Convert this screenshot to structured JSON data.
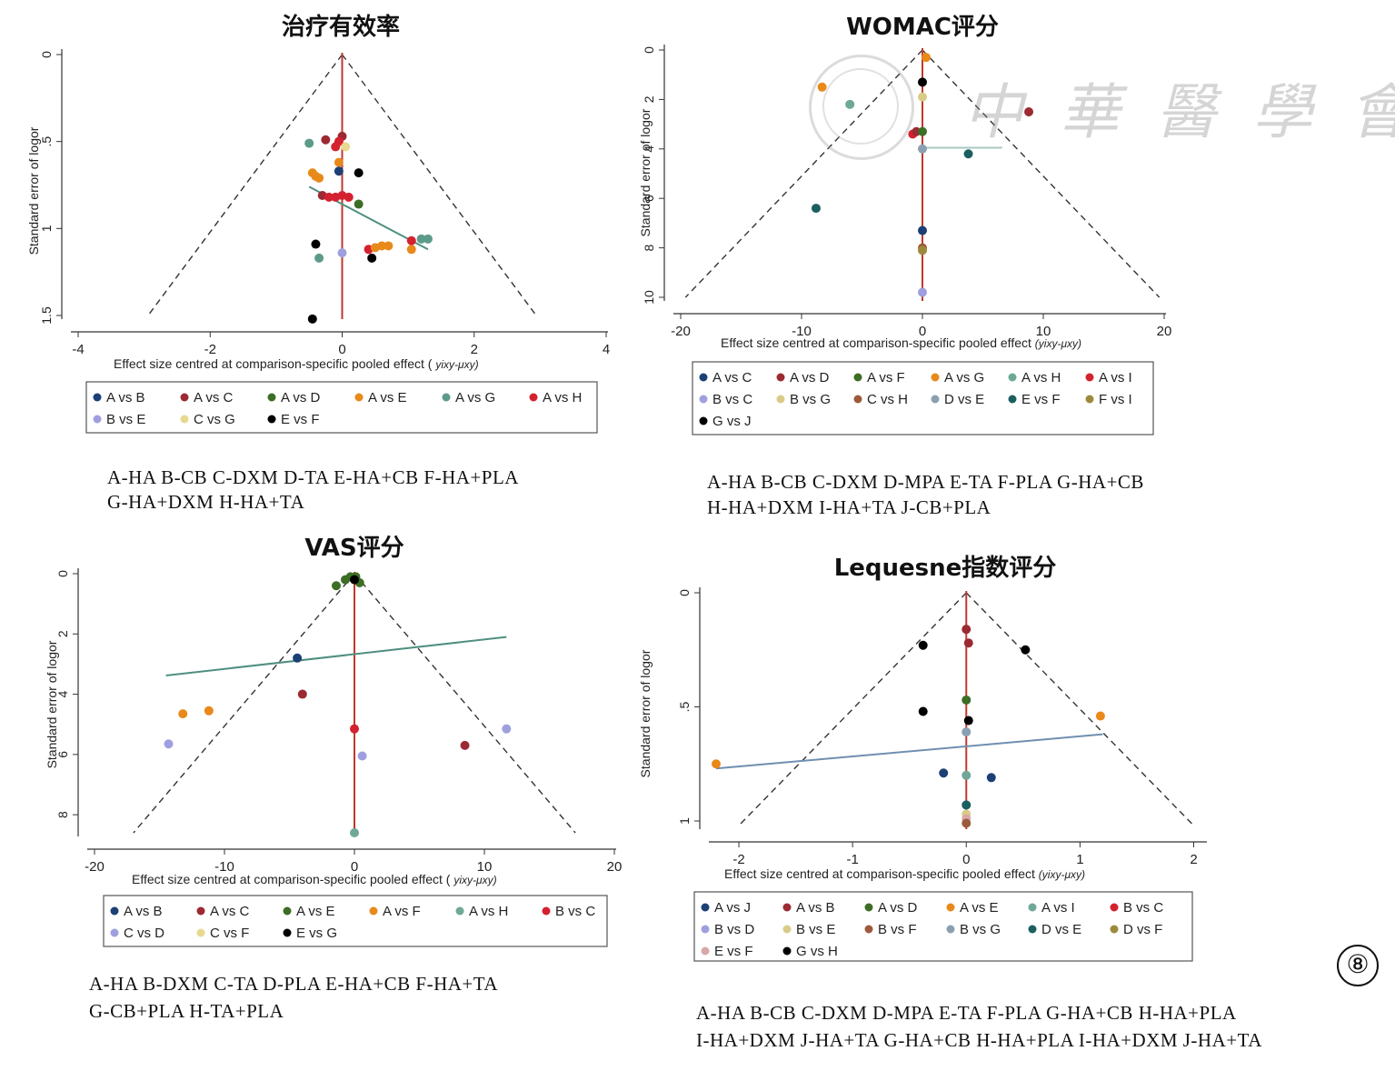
{
  "figure_label": "⑧",
  "watermark": "中華醫學會",
  "chart_data": [
    {
      "type": "scatter",
      "title": "治疗有效率",
      "xlabel": "Effect size centred at comparison-specific pooled effect (",
      "xlabel_sym": "yixy-μxy)",
      "ylabel": "Standard error of logor",
      "xlim": [
        -4,
        4
      ],
      "ylim": [
        0,
        1.5
      ],
      "xticks": [
        "-4",
        "-2",
        "0",
        "2",
        "4"
      ],
      "xtick_vals": [
        -4,
        -2,
        0,
        2,
        4
      ],
      "yticks": [
        "0",
        ".5",
        "1",
        "1.5"
      ],
      "ytick_vals": [
        0,
        0.5,
        1,
        1.5
      ],
      "funnel_base_y": 1.5,
      "funnel_half_width": 2.94,
      "fit_line": {
        "x": [
          -0.5,
          1.3
        ],
        "y": [
          0.76,
          1.12
        ]
      },
      "fit_color": "#4f8f80",
      "legend": [
        {
          "label": "A vs B",
          "color": "#1c3f75"
        },
        {
          "label": "A vs C",
          "color": "#9c2a32"
        },
        {
          "label": "A vs D",
          "color": "#3c6e25"
        },
        {
          "label": "A vs E",
          "color": "#e8891a"
        },
        {
          "label": "A vs G",
          "color": "#5c9a8a"
        },
        {
          "label": "A vs H",
          "color": "#d4212f"
        },
        {
          "label": "B vs E",
          "color": "#9f9fe0"
        },
        {
          "label": "C vs G",
          "color": "#e8d890"
        },
        {
          "label": "E vs F",
          "color": "#000000"
        }
      ],
      "legend_cols": 6,
      "points": [
        {
          "x": 0,
          "y": 0.47,
          "s": "A vs C"
        },
        {
          "x": -0.25,
          "y": 0.49,
          "s": "A vs C"
        },
        {
          "x": -0.5,
          "y": 0.51,
          "s": "A vs G"
        },
        {
          "x": -0.05,
          "y": 0.5,
          "s": "A vs H"
        },
        {
          "x": -0.1,
          "y": 0.53,
          "s": "A vs H"
        },
        {
          "x": 0.05,
          "y": 0.53,
          "s": "C vs G"
        },
        {
          "x": -0.05,
          "y": 0.62,
          "s": "A vs E"
        },
        {
          "x": -0.05,
          "y": 0.67,
          "s": "A vs B"
        },
        {
          "x": 0.25,
          "y": 0.68,
          "s": "E vs F"
        },
        {
          "x": -0.45,
          "y": 0.68,
          "s": "A vs E"
        },
        {
          "x": -0.4,
          "y": 0.7,
          "s": "A vs E"
        },
        {
          "x": -0.35,
          "y": 0.71,
          "s": "A vs E"
        },
        {
          "x": -0.3,
          "y": 0.81,
          "s": "A vs C"
        },
        {
          "x": -0.2,
          "y": 0.82,
          "s": "A vs H"
        },
        {
          "x": -0.1,
          "y": 0.82,
          "s": "A vs H"
        },
        {
          "x": 0,
          "y": 0.81,
          "s": "A vs H"
        },
        {
          "x": 0.1,
          "y": 0.82,
          "s": "A vs H"
        },
        {
          "x": 0.25,
          "y": 0.86,
          "s": "A vs D"
        },
        {
          "x": -0.4,
          "y": 1.09,
          "s": "E vs F"
        },
        {
          "x": 0,
          "y": 1.14,
          "s": "B vs E"
        },
        {
          "x": -0.35,
          "y": 1.17,
          "s": "A vs G"
        },
        {
          "x": 0.45,
          "y": 1.17,
          "s": "E vs F"
        },
        {
          "x": 0.4,
          "y": 1.12,
          "s": "A vs H"
        },
        {
          "x": 0.5,
          "y": 1.11,
          "s": "A vs E"
        },
        {
          "x": 0.6,
          "y": 1.1,
          "s": "A vs E"
        },
        {
          "x": 0.7,
          "y": 1.1,
          "s": "A vs E"
        },
        {
          "x": 1.05,
          "y": 1.07,
          "s": "A vs H"
        },
        {
          "x": 1.05,
          "y": 1.12,
          "s": "A vs E"
        },
        {
          "x": 1.2,
          "y": 1.06,
          "s": "A vs G"
        },
        {
          "x": 1.3,
          "y": 1.06,
          "s": "A vs G"
        },
        {
          "x": -0.45,
          "y": 1.52,
          "s": "E vs F"
        }
      ]
    },
    {
      "type": "scatter",
      "title": "WOMAC评分",
      "xlabel": "Effect size centred at comparison-specific pooled effect",
      "xlabel_sym": "(yixy-μxy)",
      "ylabel": "Standard error of logor",
      "xlim": [
        -20,
        20
      ],
      "ylim": [
        0,
        10
      ],
      "xticks": [
        "-20",
        "-10",
        "0",
        "10",
        "20"
      ],
      "xtick_vals": [
        -20,
        -10,
        0,
        10,
        20
      ],
      "yticks": [
        "0",
        "2",
        "4",
        "6",
        "8",
        "10"
      ],
      "ytick_vals": [
        0,
        2,
        4,
        6,
        8,
        10
      ],
      "funnel_base_y": 10,
      "funnel_half_width": 19.6,
      "fit_line": {
        "x": [
          -0.2,
          6.6
        ],
        "y": [
          3.95,
          3.95
        ]
      },
      "fit_color": "#a8c8c0",
      "legend": [
        {
          "label": "A vs C",
          "color": "#1c3f75"
        },
        {
          "label": "A vs D",
          "color": "#9c2a32"
        },
        {
          "label": "A vs F",
          "color": "#3c6e25"
        },
        {
          "label": "A vs G",
          "color": "#e8891a"
        },
        {
          "label": "A vs H",
          "color": "#6fa898"
        },
        {
          "label": "A vs I",
          "color": "#d4212f"
        },
        {
          "label": "B vs C",
          "color": "#9f9fe0"
        },
        {
          "label": "B vs G",
          "color": "#d8cc88"
        },
        {
          "label": "C vs H",
          "color": "#9c5a3c"
        },
        {
          "label": "D vs E",
          "color": "#8aa0b0"
        },
        {
          "label": "E vs F",
          "color": "#1c5f60"
        },
        {
          "label": "F vs I",
          "color": "#9c8a3c"
        },
        {
          "label": "G vs J",
          "color": "#000000"
        }
      ],
      "legend_cols": 6,
      "points": [
        {
          "x": 0.3,
          "y": 0.3,
          "s": "A vs G"
        },
        {
          "x": 0,
          "y": 1.3,
          "s": "G vs J"
        },
        {
          "x": -8.3,
          "y": 1.5,
          "s": "A vs G"
        },
        {
          "x": 0,
          "y": 1.9,
          "s": "B vs G"
        },
        {
          "x": -6,
          "y": 2.2,
          "s": "A vs H"
        },
        {
          "x": 8.8,
          "y": 2.5,
          "s": "A vs D"
        },
        {
          "x": -0.8,
          "y": 3.4,
          "s": "A vs I"
        },
        {
          "x": -0.5,
          "y": 3.3,
          "s": "A vs D"
        },
        {
          "x": 0,
          "y": 3.3,
          "s": "A vs F"
        },
        {
          "x": 0,
          "y": 4.0,
          "s": "D vs E"
        },
        {
          "x": 3.8,
          "y": 4.2,
          "s": "E vs F"
        },
        {
          "x": -8.8,
          "y": 6.4,
          "s": "E vs F"
        },
        {
          "x": 0,
          "y": 7.3,
          "s": "A vs C"
        },
        {
          "x": 0,
          "y": 8.0,
          "s": "C vs H"
        },
        {
          "x": 0,
          "y": 8.1,
          "s": "F vs I"
        },
        {
          "x": 0,
          "y": 9.8,
          "s": "B vs C"
        }
      ]
    },
    {
      "type": "scatter",
      "title": "VAS评分",
      "xlabel": "Effect size centred at comparison-specific pooled effect (",
      "xlabel_sym": "yixy-μxy)",
      "ylabel": "Standard error of logor",
      "xlim": [
        -20,
        20
      ],
      "ylim": [
        0,
        8.6
      ],
      "xticks": [
        "-20",
        "-10",
        "0",
        "10",
        "20"
      ],
      "xtick_vals": [
        -20,
        -10,
        0,
        10,
        20
      ],
      "yticks": [
        "0",
        "2",
        "4",
        "6",
        "8"
      ],
      "ytick_vals": [
        0,
        2,
        4,
        6,
        8
      ],
      "funnel_base_y": 8.6,
      "funnel_half_width": 17.0,
      "fit_line": {
        "x": [
          -14.5,
          11.7
        ],
        "y": [
          3.38,
          2.1
        ]
      },
      "fit_color": "#4f8f80",
      "legend": [
        {
          "label": "A vs B",
          "color": "#1c3f75"
        },
        {
          "label": "A vs C",
          "color": "#9c2a32"
        },
        {
          "label": "A vs E",
          "color": "#3c6e25"
        },
        {
          "label": "A vs F",
          "color": "#e8891a"
        },
        {
          "label": "A vs H",
          "color": "#6fa898"
        },
        {
          "label": "B vs C",
          "color": "#d4212f"
        },
        {
          "label": "C vs D",
          "color": "#9f9fe0"
        },
        {
          "label": "C vs F",
          "color": "#e8d890"
        },
        {
          "label": "E vs G",
          "color": "#000000"
        }
      ],
      "legend_cols": 6,
      "points": [
        {
          "x": -1.4,
          "y": 0.4,
          "s": "A vs E"
        },
        {
          "x": -0.7,
          "y": 0.2,
          "s": "A vs E"
        },
        {
          "x": -0.3,
          "y": 0.1,
          "s": "A vs E"
        },
        {
          "x": 0.1,
          "y": 0.1,
          "s": "A vs E"
        },
        {
          "x": 0.4,
          "y": 0.3,
          "s": "A vs E"
        },
        {
          "x": 0,
          "y": 0.2,
          "s": "E vs G"
        },
        {
          "x": -4.4,
          "y": 2.8,
          "s": "A vs B"
        },
        {
          "x": -4.0,
          "y": 4.0,
          "s": "A vs C"
        },
        {
          "x": -11.2,
          "y": 4.55,
          "s": "A vs F"
        },
        {
          "x": -13.2,
          "y": 4.65,
          "s": "A vs F"
        },
        {
          "x": 0,
          "y": 5.15,
          "s": "B vs C"
        },
        {
          "x": 11.7,
          "y": 5.15,
          "s": "C vs D"
        },
        {
          "x": -14.3,
          "y": 5.65,
          "s": "C vs D"
        },
        {
          "x": 8.5,
          "y": 5.7,
          "s": "A vs C"
        },
        {
          "x": 0.6,
          "y": 6.05,
          "s": "C vs D"
        },
        {
          "x": 0,
          "y": 8.6,
          "s": "A vs H"
        }
      ]
    },
    {
      "type": "scatter",
      "title": "Lequesne指数评分",
      "xlabel": "Effect size centred at comparison-specific pooled effect",
      "xlabel_sym": "(yixy-μxy)",
      "ylabel": "Standard error of logor",
      "xlim": [
        -2.2,
        2.1
      ],
      "ylim": [
        0,
        1.02
      ],
      "xticks": [
        "-2",
        "-1",
        "0",
        "1",
        "2"
      ],
      "xtick_vals": [
        -2,
        -1,
        0,
        1,
        2
      ],
      "yticks": [
        "0",
        ".5",
        "1"
      ],
      "ytick_vals": [
        0,
        0.5,
        1
      ],
      "funnel_base_y": 1.02,
      "funnel_half_width": 2.0,
      "fit_line": {
        "x": [
          -2.2,
          1.2
        ],
        "y": [
          0.77,
          0.62
        ]
      },
      "fit_color": "#6f8fb0",
      "legend": [
        {
          "label": "A vs J",
          "color": "#1c3f75"
        },
        {
          "label": "A vs B",
          "color": "#9c2a32"
        },
        {
          "label": "A vs D",
          "color": "#3c6e25"
        },
        {
          "label": "A vs E",
          "color": "#e8891a"
        },
        {
          "label": "A vs I",
          "color": "#6fa898"
        },
        {
          "label": "B vs C",
          "color": "#d4212f"
        },
        {
          "label": "B vs D",
          "color": "#9f9fe0"
        },
        {
          "label": "B vs E",
          "color": "#d8cc88"
        },
        {
          "label": "B vs F",
          "color": "#9c5a3c"
        },
        {
          "label": "B vs G",
          "color": "#8aa0b0"
        },
        {
          "label": "D vs E",
          "color": "#1c5f60"
        },
        {
          "label": "D vs F",
          "color": "#9c8a3c"
        },
        {
          "label": "E vs F",
          "color": "#d8a8a8"
        },
        {
          "label": "G vs H",
          "color": "#000000"
        }
      ],
      "legend_cols": 6,
      "points": [
        {
          "x": 0,
          "y": 0.16,
          "s": "A vs B"
        },
        {
          "x": 0.02,
          "y": 0.22,
          "s": "A vs B"
        },
        {
          "x": -0.38,
          "y": 0.23,
          "s": "G vs H"
        },
        {
          "x": 0.52,
          "y": 0.25,
          "s": "G vs H"
        },
        {
          "x": 0,
          "y": 0.47,
          "s": "A vs D"
        },
        {
          "x": -0.38,
          "y": 0.52,
          "s": "G vs H"
        },
        {
          "x": 1.18,
          "y": 0.54,
          "s": "A vs E"
        },
        {
          "x": 0.02,
          "y": 0.56,
          "s": "G vs H"
        },
        {
          "x": 0,
          "y": 0.61,
          "s": "B vs G"
        },
        {
          "x": -2.2,
          "y": 0.75,
          "s": "A vs E"
        },
        {
          "x": -0.2,
          "y": 0.79,
          "s": "A vs J"
        },
        {
          "x": 0,
          "y": 0.8,
          "s": "A vs I"
        },
        {
          "x": 0.22,
          "y": 0.81,
          "s": "A vs J"
        },
        {
          "x": 0,
          "y": 0.93,
          "s": "D vs E"
        },
        {
          "x": 0,
          "y": 0.97,
          "s": "B vs E"
        },
        {
          "x": 0,
          "y": 0.99,
          "s": "E vs F"
        },
        {
          "x": 0,
          "y": 1.01,
          "s": "B vs F"
        }
      ]
    }
  ],
  "abbreviations": [
    [
      "A-HA  B-CB  C-DXM  D-TA  E-HA+CB  F-HA+PLA",
      " G-HA+DXM  H-HA+TA"
    ],
    [
      "A-HA  B-CB  C-DXM  D-MPA  E-TA  F-PLA G-HA+CB",
      "H-HA+DXM  I-HA+TA  J-CB+PLA"
    ],
    [
      "A-HA  B-DXM  C-TA  D-PLA  E-HA+CB  F-HA+TA",
      "G-CB+PLA  H-TA+PLA"
    ],
    [
      "A-HA  B-CB  C-DXM  D-MPA  E-TA  F-PLA  G-HA+CB  H-HA+PLA",
      "I-HA+DXM  J-HA+TA G-HA+CB  H-HA+PLA I-HA+DXM  J-HA+TA"
    ]
  ]
}
